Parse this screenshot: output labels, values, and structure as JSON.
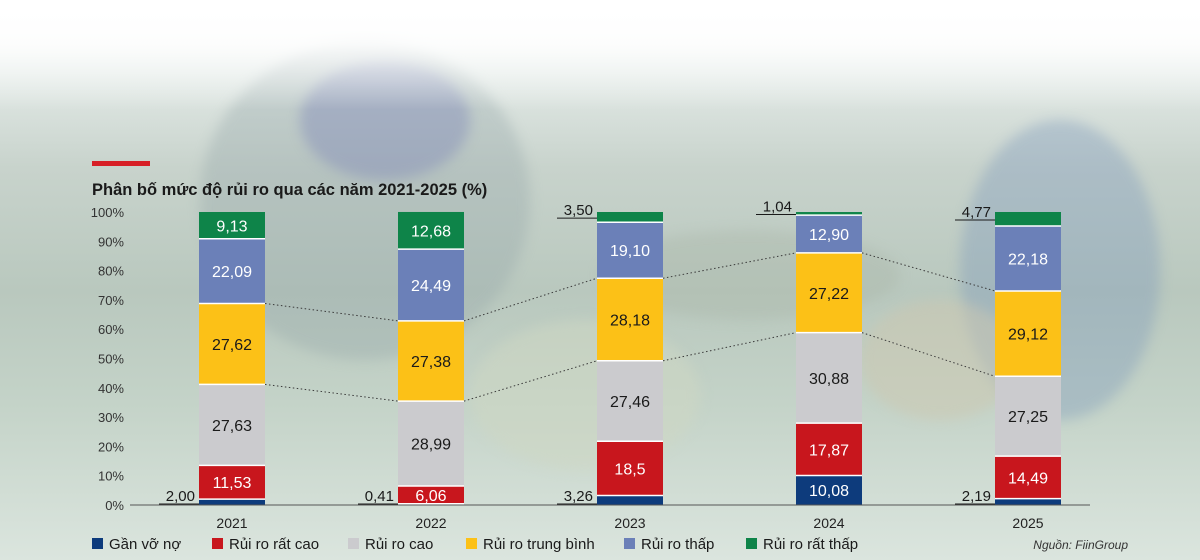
{
  "title": "Phân bố mức độ rủi ro qua các năm 2021-2025 (%)",
  "source": "Nguồn: FiinGroup",
  "colors": {
    "accent": "#d71f26",
    "series": [
      "#0d3b7c",
      "#c8161d",
      "#cbcbce",
      "#fcc117",
      "#6b80b8",
      "#0e8449"
    ]
  },
  "chart_data": {
    "type": "bar",
    "stacked": true,
    "title": "Phân bố mức độ rủi ro qua các năm 2021-2025 (%)",
    "categories": [
      "2021",
      "2022",
      "2023",
      "2024",
      "2025"
    ],
    "ylim": [
      0,
      100
    ],
    "yticks": [
      "0%",
      "10%",
      "20%",
      "30%",
      "40%",
      "50%",
      "60%",
      "70%",
      "80%",
      "90%",
      "100%"
    ],
    "series": [
      {
        "name": "Gần vỡ nợ",
        "values": [
          2.0,
          0.41,
          3.26,
          10.08,
          2.19
        ],
        "labels": [
          "2,00",
          "0,41",
          "3,26",
          "10,08",
          "2,19"
        ]
      },
      {
        "name": "Rủi ro rất cao",
        "values": [
          11.53,
          6.06,
          18.5,
          17.87,
          14.49
        ],
        "labels": [
          "11,53",
          "6,06",
          "18,5",
          "17,87",
          "14,49"
        ]
      },
      {
        "name": "Rủi ro cao",
        "values": [
          27.63,
          28.99,
          27.46,
          30.88,
          27.25
        ],
        "labels": [
          "27,63",
          "28,99",
          "27,46",
          "30,88",
          "27,25"
        ]
      },
      {
        "name": "Rủi ro trung bình",
        "values": [
          27.62,
          27.38,
          28.18,
          27.22,
          29.12
        ],
        "labels": [
          "27,62",
          "27,38",
          "28,18",
          "27,22",
          "29,12"
        ]
      },
      {
        "name": "Rủi ro thấp",
        "values": [
          22.09,
          24.49,
          19.1,
          12.9,
          22.18
        ],
        "labels": [
          "22,09",
          "24,49",
          "19,10",
          "12,90",
          "22,18"
        ]
      },
      {
        "name": "Rủi ro rất thấp",
        "values": [
          9.13,
          12.68,
          3.5,
          1.04,
          4.77
        ],
        "labels": [
          "9,13",
          "12,68",
          "3,50",
          "1,04",
          "4,77"
        ]
      }
    ],
    "legend_position": "bottom"
  }
}
